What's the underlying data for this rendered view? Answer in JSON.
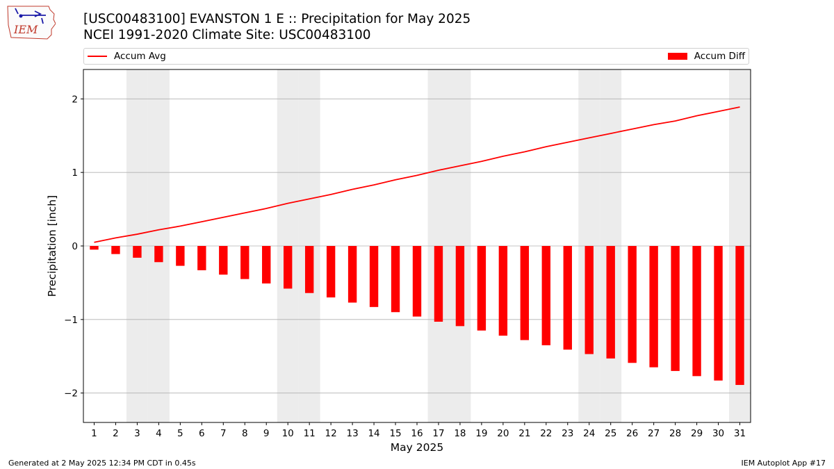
{
  "header": {
    "title_line1": "[USC00483100] EVANSTON 1 E :: Precipitation for May 2025",
    "title_line2": "NCEI 1991-2020 Climate Site: USC00483100",
    "logo_text": "IEM"
  },
  "legend": {
    "line_label": "Accum Avg",
    "bar_label": "Accum Diff"
  },
  "footer": {
    "left": "Generated at 2 May 2025 12:34 PM CDT in 0.45s",
    "right": "IEM Autoplot App #17"
  },
  "colors": {
    "series": "#ff0000",
    "weekend_shading": "#ececec",
    "grid": "#b0b0b0"
  },
  "chart_data": {
    "type": "bar",
    "xlabel": "May 2025",
    "ylabel": "Precipitation [inch]",
    "ylim": [
      -2.4,
      2.4
    ],
    "yticks": [
      2,
      1,
      0,
      -1,
      -2
    ],
    "ytick_labels": [
      "2",
      "1",
      "0",
      "−1",
      "−2"
    ],
    "categories": [
      "1",
      "2",
      "3",
      "4",
      "5",
      "6",
      "7",
      "8",
      "9",
      "10",
      "11",
      "12",
      "13",
      "14",
      "15",
      "16",
      "17",
      "18",
      "19",
      "20",
      "21",
      "22",
      "23",
      "24",
      "25",
      "26",
      "27",
      "28",
      "29",
      "30",
      "31"
    ],
    "weekend_days": [
      3,
      4,
      10,
      11,
      17,
      18,
      24,
      25,
      31
    ],
    "grid": "y",
    "legend_position": "top",
    "series": [
      {
        "name": "Accum Avg",
        "type": "line",
        "values": [
          0.05,
          0.11,
          0.16,
          0.22,
          0.27,
          0.33,
          0.39,
          0.45,
          0.51,
          0.58,
          0.64,
          0.7,
          0.77,
          0.83,
          0.9,
          0.96,
          1.03,
          1.09,
          1.15,
          1.22,
          1.28,
          1.35,
          1.41,
          1.47,
          1.53,
          1.59,
          1.65,
          1.7,
          1.77,
          1.83,
          1.89
        ]
      },
      {
        "name": "Accum Diff",
        "type": "bar",
        "values": [
          -0.05,
          -0.11,
          -0.16,
          -0.22,
          -0.27,
          -0.33,
          -0.39,
          -0.45,
          -0.51,
          -0.58,
          -0.64,
          -0.7,
          -0.77,
          -0.83,
          -0.9,
          -0.96,
          -1.03,
          -1.09,
          -1.15,
          -1.22,
          -1.28,
          -1.35,
          -1.41,
          -1.47,
          -1.53,
          -1.59,
          -1.65,
          -1.7,
          -1.77,
          -1.83,
          -1.89
        ]
      }
    ]
  }
}
